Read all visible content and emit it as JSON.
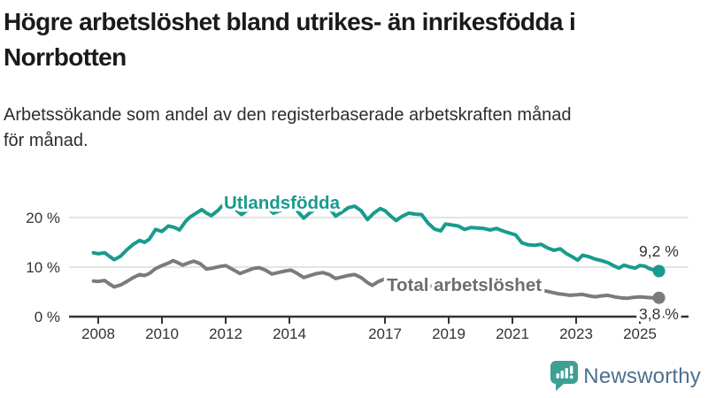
{
  "title": {
    "line1": "Högre arbetslöshet bland utrikes- än inrikesfödda i",
    "line2": "Norrbotten"
  },
  "subtitle": {
    "line1": "Arbetssökande som andel av den registerbaserade arbetskraften månad",
    "line2": "för månad."
  },
  "colors": {
    "title_text": "#1a1a1a",
    "subtitle_text": "#2d2d2d",
    "axis": "#333333",
    "gridline": "#dcdcdc",
    "foreign_born_teal": "#189b8d",
    "total_gray": "#7b7b7b",
    "total_label_gray": "#6d6d72",
    "logo_icon_teal": "#3da093",
    "logo_text_blue": "#4e6f8c"
  },
  "chart_data": {
    "type": "line",
    "title": "Högre arbetslöshet bland utrikes- än inrikesfödda i Norrbotten",
    "subtitle": "Arbetssökande som andel av den registerbaserade arbetskraften månad för månad.",
    "unit": "%",
    "grid": true,
    "legend_position": "inline-on-lines",
    "x_axis": {
      "range": [
        2007.85,
        2026.5
      ],
      "tick_years": [
        2008,
        2010,
        2012,
        2014,
        2017,
        2019,
        2021,
        2023,
        2025
      ]
    },
    "y_axis": {
      "range": [
        0,
        25
      ],
      "ticks": [
        {
          "value": 0,
          "label": "0 %"
        },
        {
          "value": 10,
          "label": "10 %"
        },
        {
          "value": 20,
          "label": "20 %"
        }
      ]
    },
    "series": [
      {
        "name": "Utlandsfödda",
        "color": "#189b8d",
        "end_value": 9.2,
        "end_label": "9,2 %",
        "points": [
          [
            2007.85,
            12.9
          ],
          [
            2008.0,
            12.7
          ],
          [
            2008.2,
            12.9
          ],
          [
            2008.35,
            12.2
          ],
          [
            2008.5,
            11.5
          ],
          [
            2008.7,
            12.2
          ],
          [
            2008.9,
            13.5
          ],
          [
            2009.1,
            14.6
          ],
          [
            2009.3,
            15.4
          ],
          [
            2009.45,
            15.0
          ],
          [
            2009.6,
            15.6
          ],
          [
            2009.8,
            17.6
          ],
          [
            2010.0,
            17.2
          ],
          [
            2010.2,
            18.3
          ],
          [
            2010.4,
            18.0
          ],
          [
            2010.55,
            17.5
          ],
          [
            2010.75,
            19.3
          ],
          [
            2010.9,
            20.2
          ],
          [
            2011.1,
            21.0
          ],
          [
            2011.25,
            21.6
          ],
          [
            2011.4,
            20.9
          ],
          [
            2011.55,
            20.4
          ],
          [
            2011.75,
            21.4
          ],
          [
            2011.95,
            22.8
          ],
          [
            2012.1,
            23.1
          ],
          [
            2012.3,
            21.7
          ],
          [
            2012.5,
            20.6
          ],
          [
            2012.7,
            21.6
          ],
          [
            2012.9,
            22.5
          ],
          [
            2013.1,
            22.7
          ],
          [
            2013.3,
            22.1
          ],
          [
            2013.5,
            20.9
          ],
          [
            2013.7,
            21.4
          ],
          [
            2013.9,
            22.5
          ],
          [
            2014.05,
            22.9
          ],
          [
            2014.25,
            21.3
          ],
          [
            2014.45,
            19.9
          ],
          [
            2014.65,
            21.0
          ],
          [
            2014.85,
            21.8
          ],
          [
            2015.05,
            22.5
          ],
          [
            2015.25,
            21.9
          ],
          [
            2015.45,
            20.3
          ],
          [
            2015.65,
            21.1
          ],
          [
            2015.85,
            22.0
          ],
          [
            2016.05,
            22.3
          ],
          [
            2016.25,
            21.4
          ],
          [
            2016.45,
            19.6
          ],
          [
            2016.65,
            20.9
          ],
          [
            2016.85,
            21.8
          ],
          [
            2017.0,
            21.4
          ],
          [
            2017.2,
            20.2
          ],
          [
            2017.35,
            19.4
          ],
          [
            2017.55,
            20.3
          ],
          [
            2017.75,
            20.9
          ],
          [
            2017.95,
            20.7
          ],
          [
            2018.15,
            20.6
          ],
          [
            2018.35,
            18.9
          ],
          [
            2018.55,
            17.7
          ],
          [
            2018.75,
            17.3
          ],
          [
            2018.9,
            18.7
          ],
          [
            2019.1,
            18.5
          ],
          [
            2019.3,
            18.3
          ],
          [
            2019.5,
            17.6
          ],
          [
            2019.7,
            18.0
          ],
          [
            2019.9,
            17.9
          ],
          [
            2020.1,
            17.8
          ],
          [
            2020.3,
            17.5
          ],
          [
            2020.5,
            17.8
          ],
          [
            2020.7,
            17.3
          ],
          [
            2020.9,
            16.9
          ],
          [
            2021.1,
            16.5
          ],
          [
            2021.3,
            14.9
          ],
          [
            2021.5,
            14.5
          ],
          [
            2021.7,
            14.4
          ],
          [
            2021.9,
            14.6
          ],
          [
            2022.1,
            13.9
          ],
          [
            2022.3,
            13.4
          ],
          [
            2022.5,
            13.7
          ],
          [
            2022.7,
            12.7
          ],
          [
            2022.9,
            12.0
          ],
          [
            2023.05,
            11.4
          ],
          [
            2023.2,
            12.4
          ],
          [
            2023.4,
            12.1
          ],
          [
            2023.6,
            11.6
          ],
          [
            2023.8,
            11.3
          ],
          [
            2024.0,
            10.9
          ],
          [
            2024.2,
            10.2
          ],
          [
            2024.35,
            9.8
          ],
          [
            2024.5,
            10.4
          ],
          [
            2024.7,
            10.0
          ],
          [
            2024.85,
            9.8
          ],
          [
            2025.0,
            10.3
          ],
          [
            2025.15,
            10.2
          ],
          [
            2025.3,
            9.7
          ],
          [
            2025.45,
            9.4
          ],
          [
            2025.6,
            9.2
          ]
        ]
      },
      {
        "name": "Total arbetslöshet",
        "color": "#7b7b7b",
        "end_value": 3.8,
        "end_label": "3,8 %",
        "points": [
          [
            2007.85,
            7.2
          ],
          [
            2008.0,
            7.1
          ],
          [
            2008.2,
            7.3
          ],
          [
            2008.35,
            6.6
          ],
          [
            2008.5,
            6.0
          ],
          [
            2008.7,
            6.4
          ],
          [
            2008.9,
            7.1
          ],
          [
            2009.1,
            7.9
          ],
          [
            2009.3,
            8.5
          ],
          [
            2009.45,
            8.3
          ],
          [
            2009.6,
            8.7
          ],
          [
            2009.8,
            9.7
          ],
          [
            2010.0,
            10.3
          ],
          [
            2010.2,
            10.8
          ],
          [
            2010.35,
            11.3
          ],
          [
            2010.5,
            10.9
          ],
          [
            2010.65,
            10.4
          ],
          [
            2010.85,
            10.9
          ],
          [
            2011.0,
            11.2
          ],
          [
            2011.2,
            10.7
          ],
          [
            2011.4,
            9.6
          ],
          [
            2011.6,
            9.8
          ],
          [
            2011.8,
            10.1
          ],
          [
            2012.0,
            10.3
          ],
          [
            2012.2,
            9.6
          ],
          [
            2012.45,
            8.7
          ],
          [
            2012.65,
            9.2
          ],
          [
            2012.85,
            9.7
          ],
          [
            2013.05,
            9.9
          ],
          [
            2013.25,
            9.4
          ],
          [
            2013.45,
            8.6
          ],
          [
            2013.65,
            8.9
          ],
          [
            2013.85,
            9.2
          ],
          [
            2014.05,
            9.4
          ],
          [
            2014.25,
            8.7
          ],
          [
            2014.45,
            7.9
          ],
          [
            2014.65,
            8.3
          ],
          [
            2014.85,
            8.7
          ],
          [
            2015.05,
            8.9
          ],
          [
            2015.25,
            8.5
          ],
          [
            2015.45,
            7.7
          ],
          [
            2015.65,
            8.0
          ],
          [
            2015.85,
            8.3
          ],
          [
            2016.05,
            8.5
          ],
          [
            2016.25,
            7.9
          ],
          [
            2016.45,
            6.9
          ],
          [
            2016.6,
            6.3
          ],
          [
            2016.8,
            7.1
          ],
          [
            2017.0,
            7.6
          ],
          [
            2017.2,
            7.4
          ],
          [
            2017.4,
            6.9
          ],
          [
            2017.6,
            6.5
          ],
          [
            2017.8,
            6.8
          ],
          [
            2018.0,
            7.0
          ],
          [
            2018.2,
            6.6
          ],
          [
            2018.45,
            6.1
          ],
          [
            2018.65,
            6.3
          ],
          [
            2018.85,
            6.5
          ],
          [
            2019.05,
            6.6
          ],
          [
            2019.25,
            6.3
          ],
          [
            2019.45,
            5.9
          ],
          [
            2019.65,
            6.1
          ],
          [
            2019.85,
            6.3
          ],
          [
            2020.05,
            6.6
          ],
          [
            2020.3,
            7.2
          ],
          [
            2020.5,
            7.4
          ],
          [
            2020.7,
            7.1
          ],
          [
            2020.9,
            6.8
          ],
          [
            2021.1,
            6.6
          ],
          [
            2021.3,
            6.2
          ],
          [
            2021.5,
            5.8
          ],
          [
            2021.7,
            5.6
          ],
          [
            2021.9,
            5.4
          ],
          [
            2022.1,
            5.1
          ],
          [
            2022.3,
            4.8
          ],
          [
            2022.45,
            4.6
          ],
          [
            2022.6,
            4.5
          ],
          [
            2022.8,
            4.3
          ],
          [
            2023.0,
            4.4
          ],
          [
            2023.2,
            4.5
          ],
          [
            2023.4,
            4.2
          ],
          [
            2023.6,
            4.0
          ],
          [
            2023.8,
            4.2
          ],
          [
            2024.0,
            4.3
          ],
          [
            2024.2,
            4.0
          ],
          [
            2024.4,
            3.8
          ],
          [
            2024.6,
            3.7
          ],
          [
            2024.8,
            3.9
          ],
          [
            2025.0,
            4.0
          ],
          [
            2025.2,
            3.9
          ],
          [
            2025.4,
            3.8
          ],
          [
            2025.6,
            3.8
          ]
        ]
      }
    ]
  },
  "logo": {
    "text": "Newsworthy",
    "icon": "newsworthy-speech-bubble-bar-chart-icon"
  }
}
